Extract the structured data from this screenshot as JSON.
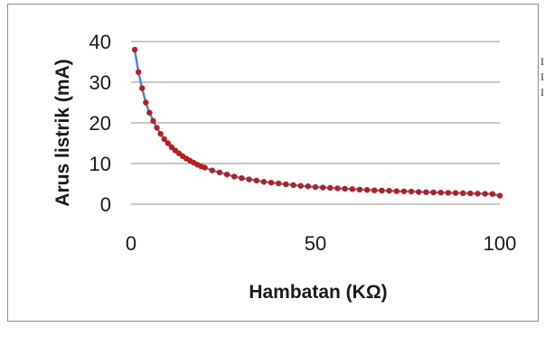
{
  "chart_data": {
    "type": "scatter",
    "title": "",
    "xlabel": "Hambatan (KΩ)",
    "ylabel": "Arus listrik (mA)",
    "xlim": [
      0,
      100
    ],
    "ylim": [
      0,
      40
    ],
    "x_ticks": [
      "0",
      "50",
      "100"
    ],
    "y_ticks": [
      "0",
      "10",
      "20",
      "30",
      "40"
    ],
    "grid": "horizontal",
    "legend": "none",
    "series": [
      {
        "color_line": "#4f86d9",
        "color_marker": "#b42020",
        "x": [
          1,
          2,
          3,
          4,
          5,
          6,
          7,
          8,
          9,
          10,
          11,
          12,
          13,
          14,
          15,
          16,
          17,
          18,
          19,
          20,
          22,
          24,
          26,
          28,
          30,
          32,
          34,
          36,
          38,
          40,
          42,
          44,
          46,
          48,
          50,
          52,
          54,
          56,
          58,
          60,
          62,
          64,
          66,
          68,
          70,
          72,
          74,
          76,
          78,
          80,
          82,
          84,
          86,
          88,
          90,
          92,
          94,
          96,
          98,
          100
        ],
        "y": [
          38,
          32.5,
          28.5,
          25,
          22.5,
          20.5,
          18.8,
          17.3,
          16,
          15,
          14,
          13.2,
          12.5,
          11.8,
          11.2,
          10.7,
          10.2,
          9.7,
          9.3,
          9,
          8.3,
          7.8,
          7.3,
          6.8,
          6.4,
          6.1,
          5.8,
          5.5,
          5.3,
          5.1,
          4.9,
          4.7,
          4.5,
          4.4,
          4.2,
          4.1,
          4,
          3.9,
          3.8,
          3.7,
          3.6,
          3.5,
          3.4,
          3.35,
          3.3,
          3.2,
          3.15,
          3.1,
          3.0,
          2.95,
          2.9,
          2.85,
          2.8,
          2.75,
          2.7,
          2.65,
          2.6,
          2.55,
          2.5,
          2.1
        ]
      }
    ]
  },
  "clipped_text": [
    "I",
    "I",
    "I"
  ]
}
